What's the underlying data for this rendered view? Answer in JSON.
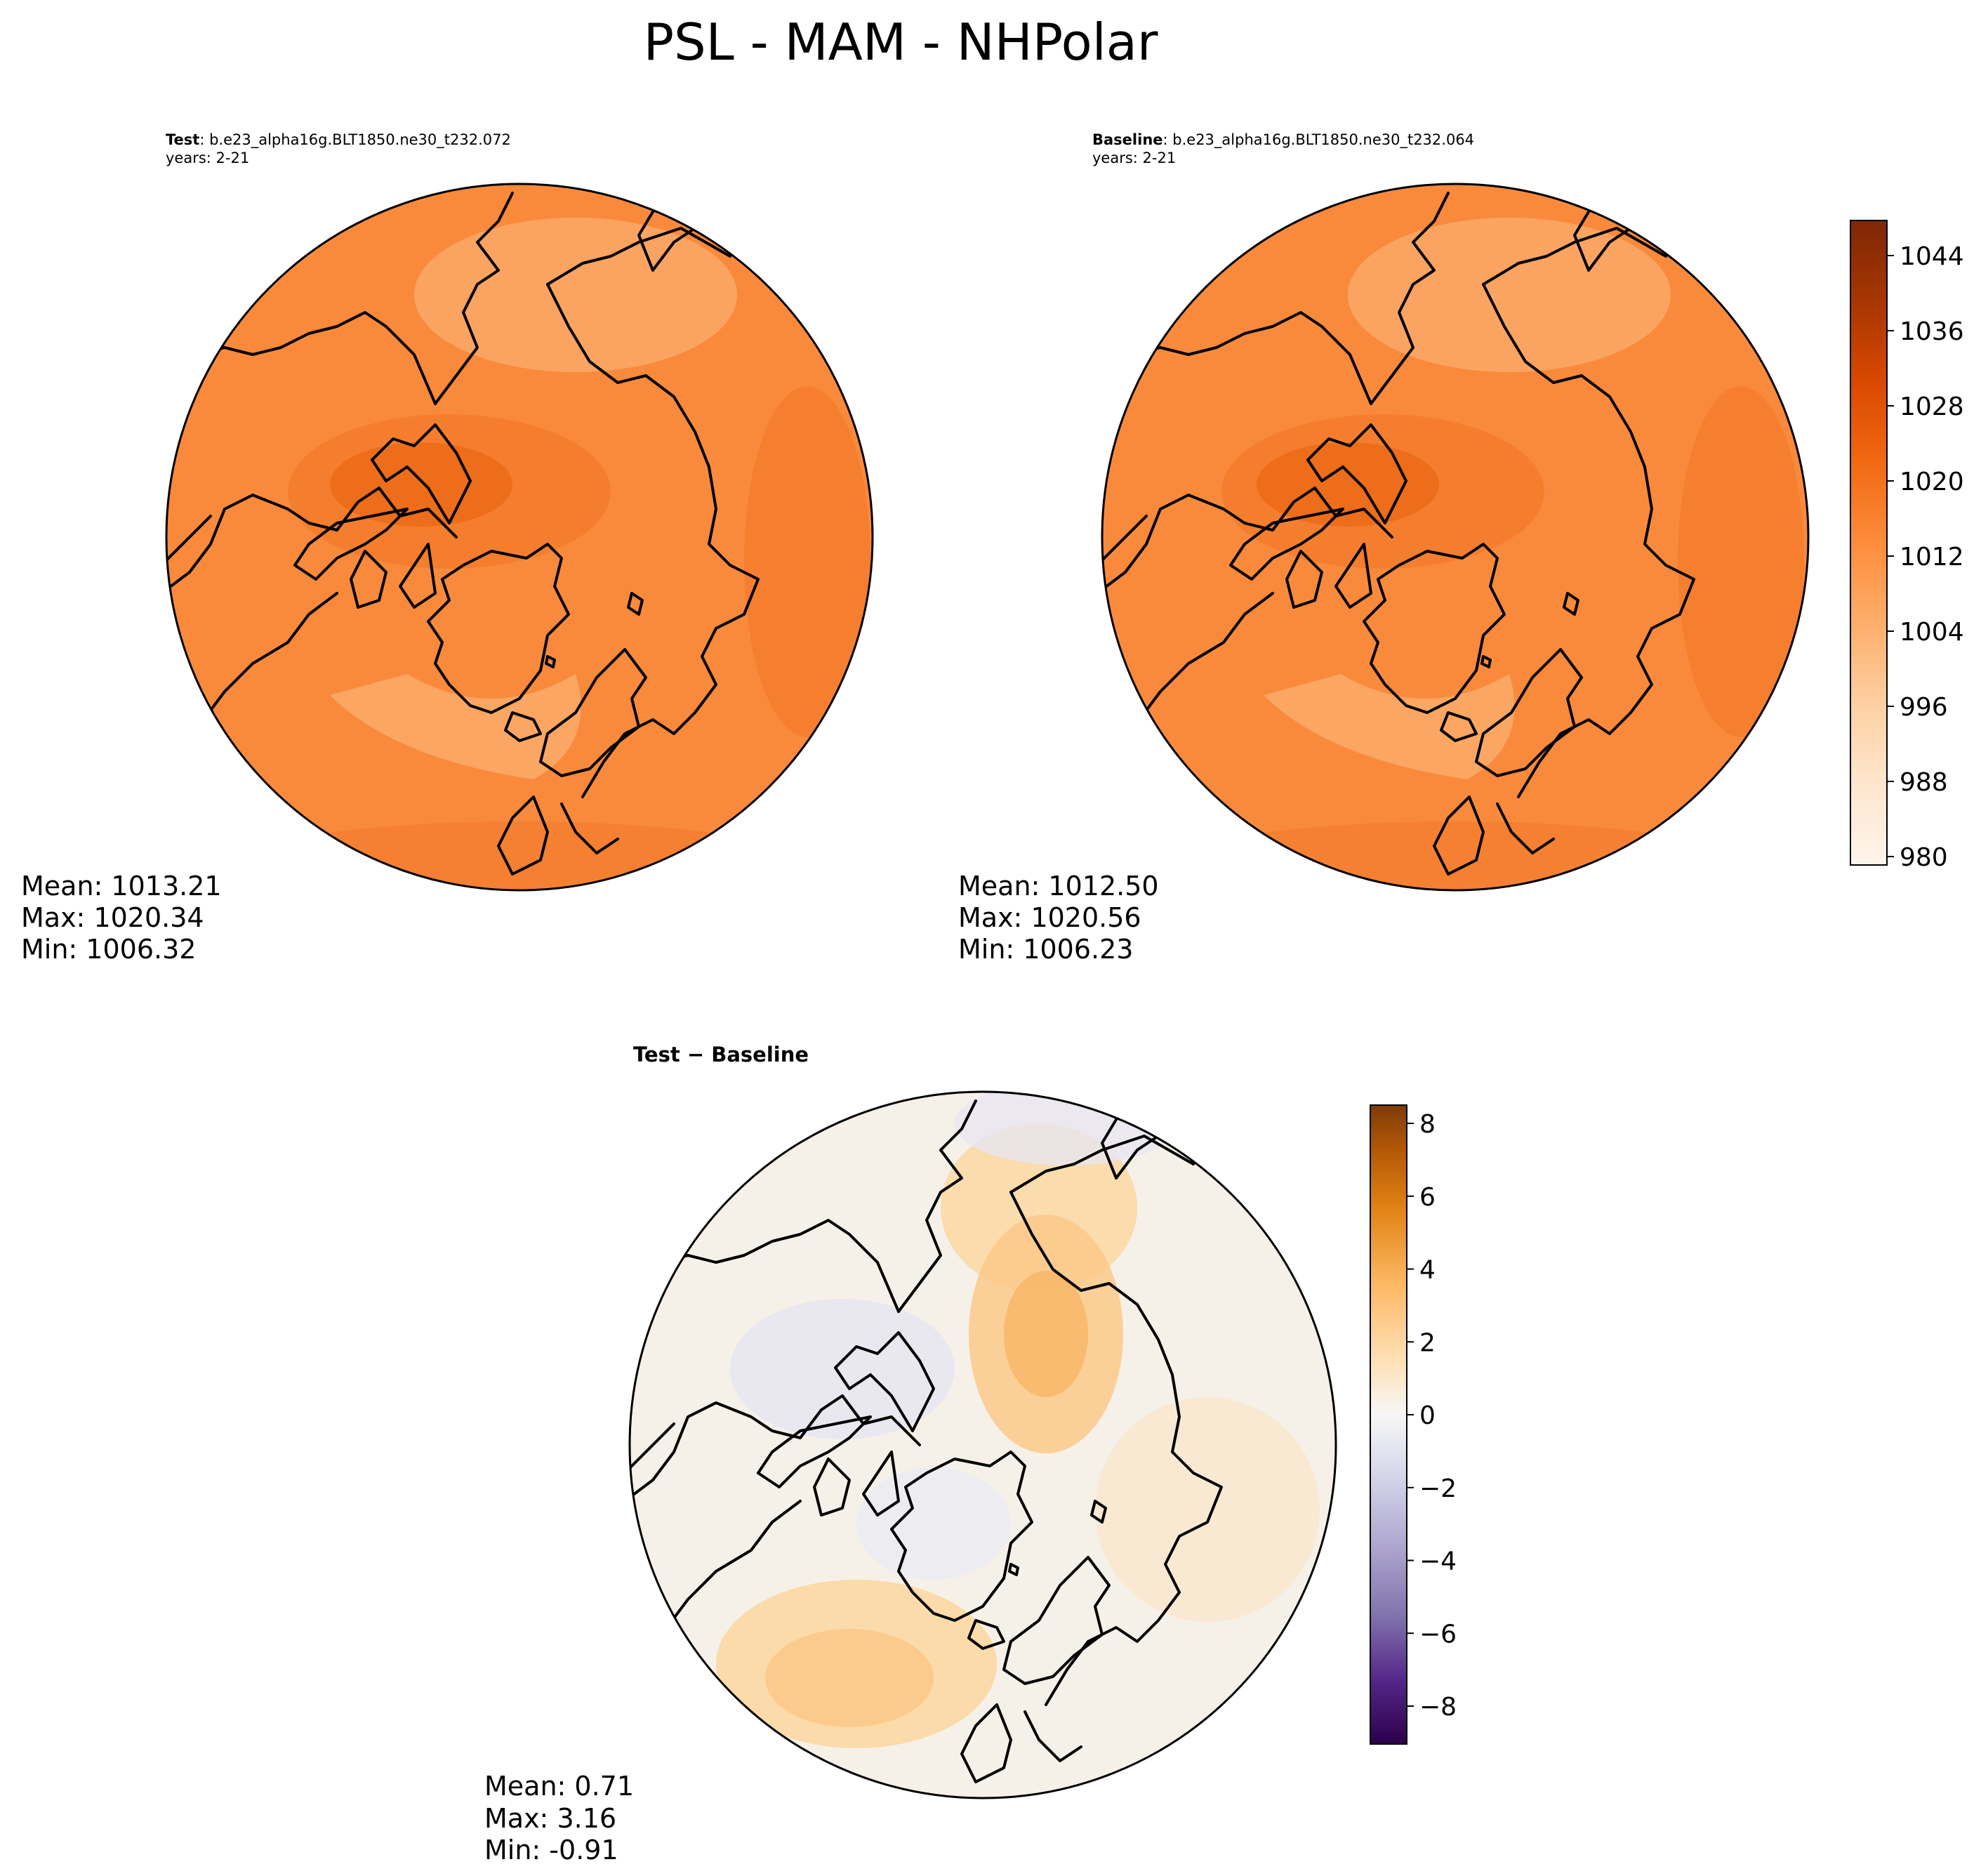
{
  "figure": {
    "title": "PSL - MAM - NHPolar"
  },
  "panels": {
    "test": {
      "label": "Test",
      "case": ": b.e23_alpha16g.BLT1850.ne30_t232.072",
      "years": "years: 2-21",
      "mean": "Mean: 1013.21",
      "max": "Max: 1020.34",
      "min": "Min: 1006.32"
    },
    "baseline": {
      "label": "Baseline",
      "case": ": b.e23_alpha16g.BLT1850.ne30_t232.064",
      "years": "years: 2-21",
      "mean": "Mean: 1012.50",
      "max": "Max: 1020.56",
      "min": "Min: 1006.23"
    },
    "diff": {
      "label": "Test − Baseline",
      "mean": "Mean:  0.71",
      "max": "Max:  3.16",
      "min": "Min: -0.91"
    }
  },
  "colorbars": {
    "field": {
      "ticks": [
        "1044",
        "1036",
        "1028",
        "1020",
        "1012",
        "1004",
        "996",
        "988",
        "980"
      ],
      "range": [
        980,
        1048
      ],
      "colormap": [
        "#fff5eb",
        "#fee6ce",
        "#fdd0a2",
        "#fdae6b",
        "#fd8d3c",
        "#f16913",
        "#d94801",
        "#a63603",
        "#7f2704"
      ]
    },
    "diff": {
      "ticks": [
        "8",
        "6",
        "4",
        "2",
        "0",
        "−2",
        "−4",
        "−6",
        "−8"
      ],
      "range": [
        -9,
        8.5
      ],
      "colormap": [
        "#2d004b",
        "#542788",
        "#8073ac",
        "#b2abd2",
        "#d8daeb",
        "#f7f7f7",
        "#fee0b6",
        "#fdb863",
        "#e08214",
        "#b35806",
        "#7f3b08"
      ]
    }
  },
  "colors": {
    "test_fill": "#f98a3c",
    "baseline_fill": "#f98a3c",
    "diff_fill": "#f6f1e8"
  }
}
